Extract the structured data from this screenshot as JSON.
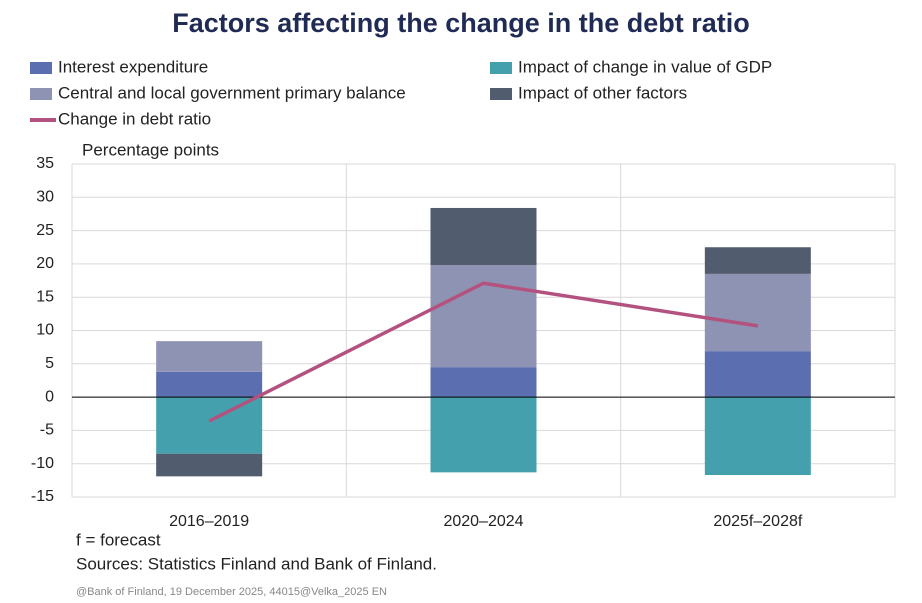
{
  "chart_data": {
    "type": "bar",
    "stacked": true,
    "title": "Factors affecting the change in the debt ratio",
    "y_label": "Percentage points",
    "categories": [
      "2016–2019",
      "2020–2024",
      "2025f–2028f"
    ],
    "series": [
      {
        "name": "Interest expenditure",
        "color": "#5b6fb0",
        "values": [
          3.8,
          4.5,
          6.9
        ]
      },
      {
        "name": "Impact of change in value of GDP",
        "color": "#45a0ae",
        "values": [
          -8.5,
          -11.3,
          -11.7
        ]
      },
      {
        "name": "Central and local government primary balance",
        "color": "#8e93b3",
        "values": [
          4.6,
          15.3,
          11.6
        ]
      },
      {
        "name": "Impact of other factors",
        "color": "#515c6e",
        "values": [
          -3.4,
          8.6,
          4.0
        ]
      },
      {
        "name": "Change in debt ratio",
        "color": "#b4527f",
        "type": "line",
        "values": [
          -3.6,
          17.1,
          10.7
        ]
      }
    ],
    "ylim": [
      -15,
      35
    ],
    "yticks": [
      -15,
      -10,
      -5,
      0,
      5,
      10,
      15,
      20,
      25,
      30,
      35
    ],
    "grid": true,
    "legend": "top",
    "footnote": "f = forecast",
    "source": "Sources: Statistics Finland and Bank of Finland.",
    "credit": "@Bank of Finland, 19 December 2025, 44015@Velka_2025 EN"
  }
}
